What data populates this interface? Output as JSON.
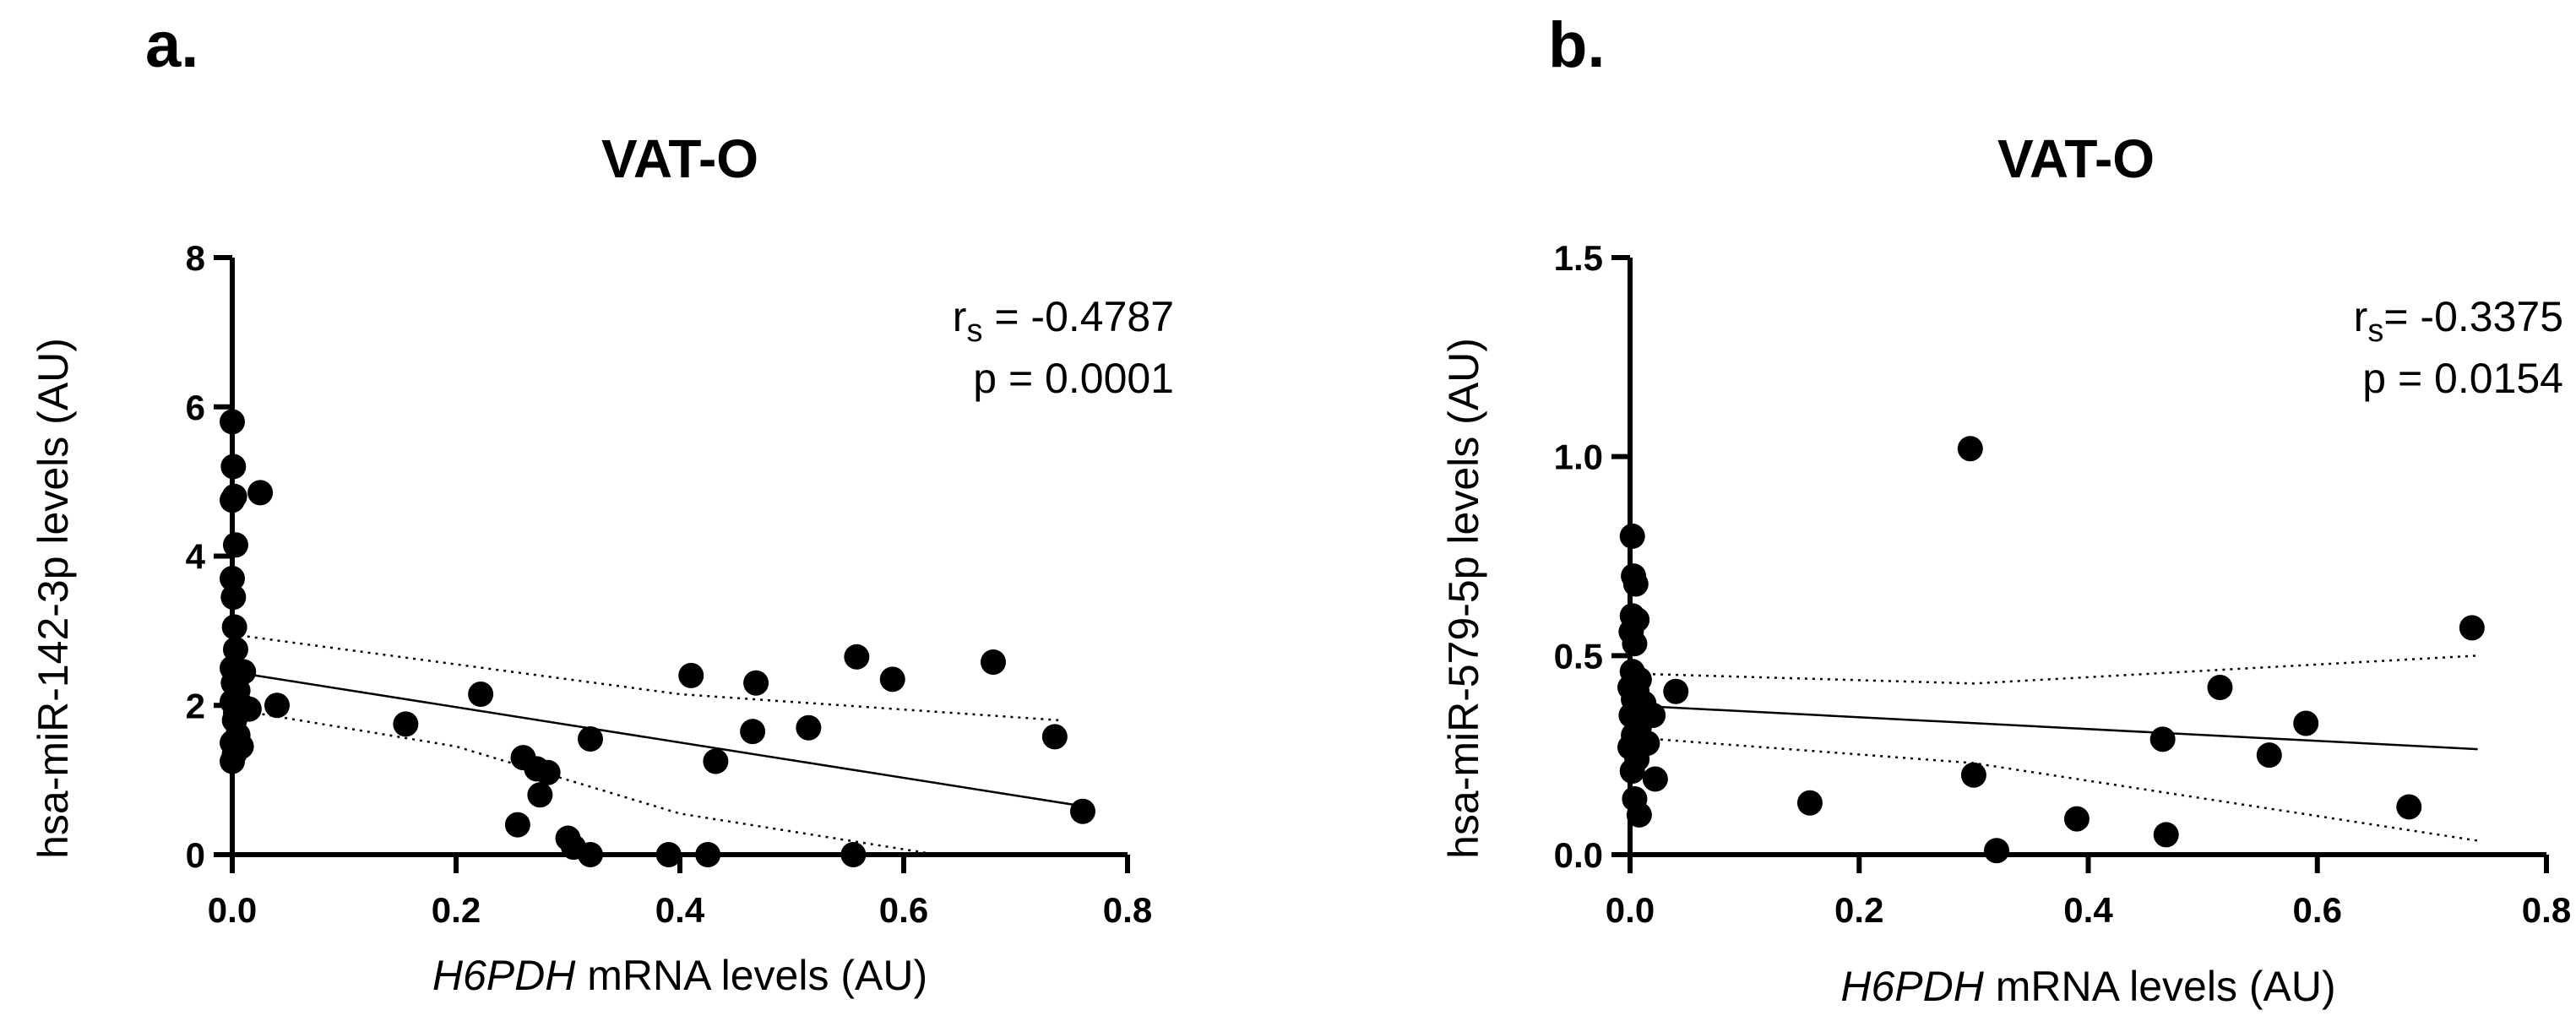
{
  "chart_data": [
    {
      "type": "scatter",
      "panel_label": "a.",
      "title": "VAT-O",
      "xlabel_italic": "H6PDH",
      "xlabel_rest": " mRNA levels (AU)",
      "ylabel": "hsa-miR-142-3p levels (AU)",
      "xlim": [
        0,
        0.8
      ],
      "ylim": [
        0,
        8
      ],
      "xticks": [
        "0.0",
        "0.2",
        "0.4",
        "0.6",
        "0.8"
      ],
      "xtick_values": [
        0,
        0.2,
        0.4,
        0.6,
        0.8
      ],
      "yticks": [
        "0",
        "2",
        "4",
        "6",
        "8"
      ],
      "ytick_values": [
        0,
        2,
        4,
        6,
        8
      ],
      "stats": {
        "r_prefix": "r",
        "r_sub": "s",
        "r_value": " = -0.4787",
        "p_text": "p =  0.0001"
      },
      "fit_line": {
        "x": [
          0,
          0.76
        ],
        "y": [
          2.45,
          0.65
        ]
      },
      "ci_upper": {
        "x": [
          0,
          0.4,
          0.74
        ],
        "y": [
          2.95,
          2.15,
          1.8
        ]
      },
      "ci_lower": {
        "x": [
          0,
          0.2,
          0.4,
          0.63
        ],
        "y": [
          1.95,
          1.45,
          0.55,
          0.0
        ]
      },
      "points": [
        [
          0.0,
          5.8
        ],
        [
          0.001,
          5.2
        ],
        [
          0.0,
          4.75
        ],
        [
          0.002,
          4.8
        ],
        [
          0.025,
          4.85
        ],
        [
          0.003,
          4.15
        ],
        [
          0.0,
          3.7
        ],
        [
          0.001,
          3.45
        ],
        [
          0.002,
          3.05
        ],
        [
          0.003,
          2.75
        ],
        [
          0.0,
          2.5
        ],
        [
          0.01,
          2.45
        ],
        [
          0.001,
          2.3
        ],
        [
          0.005,
          2.2
        ],
        [
          0.0,
          2.05
        ],
        [
          0.008,
          2.0
        ],
        [
          0.003,
          1.9
        ],
        [
          0.015,
          1.95
        ],
        [
          0.04,
          2.0
        ],
        [
          0.002,
          1.8
        ],
        [
          0.005,
          1.6
        ],
        [
          0.0,
          1.5
        ],
        [
          0.008,
          1.45
        ],
        [
          0.002,
          1.35
        ],
        [
          0.0,
          1.25
        ],
        [
          0.155,
          1.75
        ],
        [
          0.222,
          2.15
        ],
        [
          0.26,
          1.3
        ],
        [
          0.255,
          0.4
        ],
        [
          0.272,
          1.15
        ],
        [
          0.282,
          1.1
        ],
        [
          0.275,
          0.8
        ],
        [
          0.3,
          0.22
        ],
        [
          0.305,
          0.1
        ],
        [
          0.32,
          1.55
        ],
        [
          0.32,
          0.0
        ],
        [
          0.39,
          0.0
        ],
        [
          0.41,
          2.4
        ],
        [
          0.425,
          0.0
        ],
        [
          0.432,
          1.25
        ],
        [
          0.465,
          1.65
        ],
        [
          0.468,
          2.3
        ],
        [
          0.515,
          1.7
        ],
        [
          0.555,
          0.0
        ],
        [
          0.558,
          2.65
        ],
        [
          0.59,
          2.35
        ],
        [
          0.68,
          2.58
        ],
        [
          0.735,
          1.58
        ],
        [
          0.76,
          0.58
        ]
      ]
    },
    {
      "type": "scatter",
      "panel_label": "b.",
      "title": "VAT-O",
      "xlabel_italic": "H6PDH",
      "xlabel_rest": " mRNA levels (AU)",
      "ylabel": "hsa-miR-579-5p levels (AU)",
      "xlim": [
        0,
        0.8
      ],
      "ylim": [
        0,
        1.5
      ],
      "xticks": [
        "0.0",
        "0.2",
        "0.4",
        "0.6",
        "0.8"
      ],
      "xtick_values": [
        0,
        0.2,
        0.4,
        0.6,
        0.8
      ],
      "yticks": [
        "0.0",
        "0.5",
        "1.0",
        "1.5"
      ],
      "ytick_values": [
        0,
        0.5,
        1.0,
        1.5
      ],
      "stats": {
        "r_prefix": "r",
        "r_sub": "s",
        "r_value": "= -0.3375",
        "p_text": "p =  0.0154"
      },
      "fit_line": {
        "x": [
          0,
          0.74
        ],
        "y": [
          0.375,
          0.265
        ]
      },
      "ci_upper": {
        "x": [
          0,
          0.3,
          0.74
        ],
        "y": [
          0.455,
          0.43,
          0.5
        ]
      },
      "ci_lower": {
        "x": [
          0,
          0.3,
          0.74
        ],
        "y": [
          0.295,
          0.23,
          0.035
        ]
      },
      "points": [
        [
          0.002,
          0.8
        ],
        [
          0.003,
          0.7
        ],
        [
          0.005,
          0.68
        ],
        [
          0.002,
          0.6
        ],
        [
          0.006,
          0.59
        ],
        [
          0.001,
          0.56
        ],
        [
          0.004,
          0.53
        ],
        [
          0.002,
          0.46
        ],
        [
          0.008,
          0.44
        ],
        [
          0.0,
          0.42
        ],
        [
          0.006,
          0.41
        ],
        [
          0.04,
          0.41
        ],
        [
          0.003,
          0.39
        ],
        [
          0.012,
          0.38
        ],
        [
          0.02,
          0.35
        ],
        [
          0.001,
          0.35
        ],
        [
          0.008,
          0.32
        ],
        [
          0.003,
          0.3
        ],
        [
          0.0,
          0.27
        ],
        [
          0.015,
          0.28
        ],
        [
          0.006,
          0.24
        ],
        [
          0.002,
          0.21
        ],
        [
          0.022,
          0.19
        ],
        [
          0.004,
          0.14
        ],
        [
          0.008,
          0.1
        ],
        [
          0.157,
          0.13
        ],
        [
          0.297,
          1.02
        ],
        [
          0.3,
          0.2
        ],
        [
          0.32,
          0.01
        ],
        [
          0.39,
          0.09
        ],
        [
          0.465,
          0.29
        ],
        [
          0.468,
          0.05
        ],
        [
          0.515,
          0.42
        ],
        [
          0.558,
          0.25
        ],
        [
          0.59,
          0.33
        ],
        [
          0.68,
          0.12
        ],
        [
          0.735,
          0.57
        ]
      ]
    }
  ]
}
